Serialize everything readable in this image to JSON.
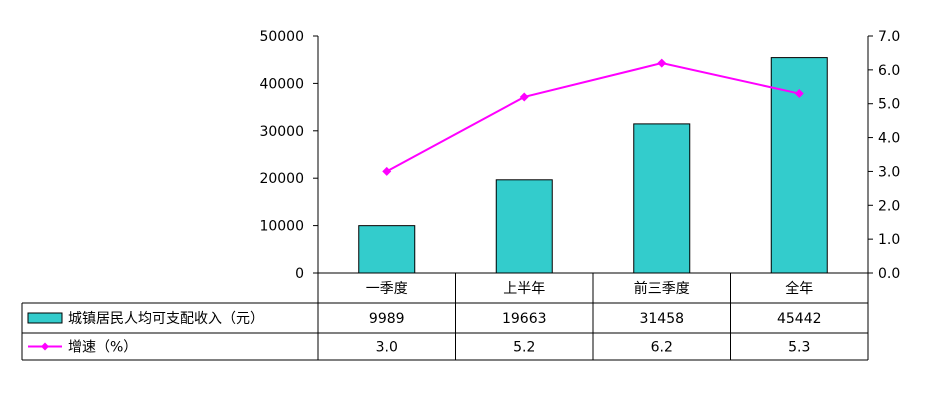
{
  "chart_data": {
    "type": "bar",
    "categories": [
      "一季度",
      "上半年",
      "前三季度",
      "全年"
    ],
    "series": [
      {
        "name": "城镇居民人均可支配收入（元）",
        "type": "bar",
        "axis": "left",
        "color": "#33CCCC",
        "values": [
          9989,
          19663,
          31458,
          45442
        ],
        "value_labels": [
          "9989",
          "19663",
          "31458",
          "45442"
        ]
      },
      {
        "name": "增速（%）",
        "type": "line",
        "axis": "right",
        "color": "#FF00FF",
        "values": [
          3.0,
          5.2,
          6.2,
          5.3
        ],
        "value_labels": [
          "3.0",
          "5.2",
          "6.2",
          "5.3"
        ]
      }
    ],
    "y_left": {
      "min": 0,
      "max": 50000,
      "ticks": [
        0,
        10000,
        20000,
        30000,
        40000,
        50000
      ],
      "tick_labels": [
        "0",
        "10000",
        "20000",
        "30000",
        "40000",
        "50000"
      ]
    },
    "y_right": {
      "min": 0,
      "max": 7,
      "ticks": [
        0,
        1,
        2,
        3,
        4,
        5,
        6,
        7
      ],
      "tick_labels": [
        "0.0",
        "1.0",
        "2.0",
        "3.0",
        "4.0",
        "5.0",
        "6.0",
        "7.0"
      ]
    },
    "title": "",
    "xlabel": "",
    "grid": false,
    "legend": "data-table"
  }
}
